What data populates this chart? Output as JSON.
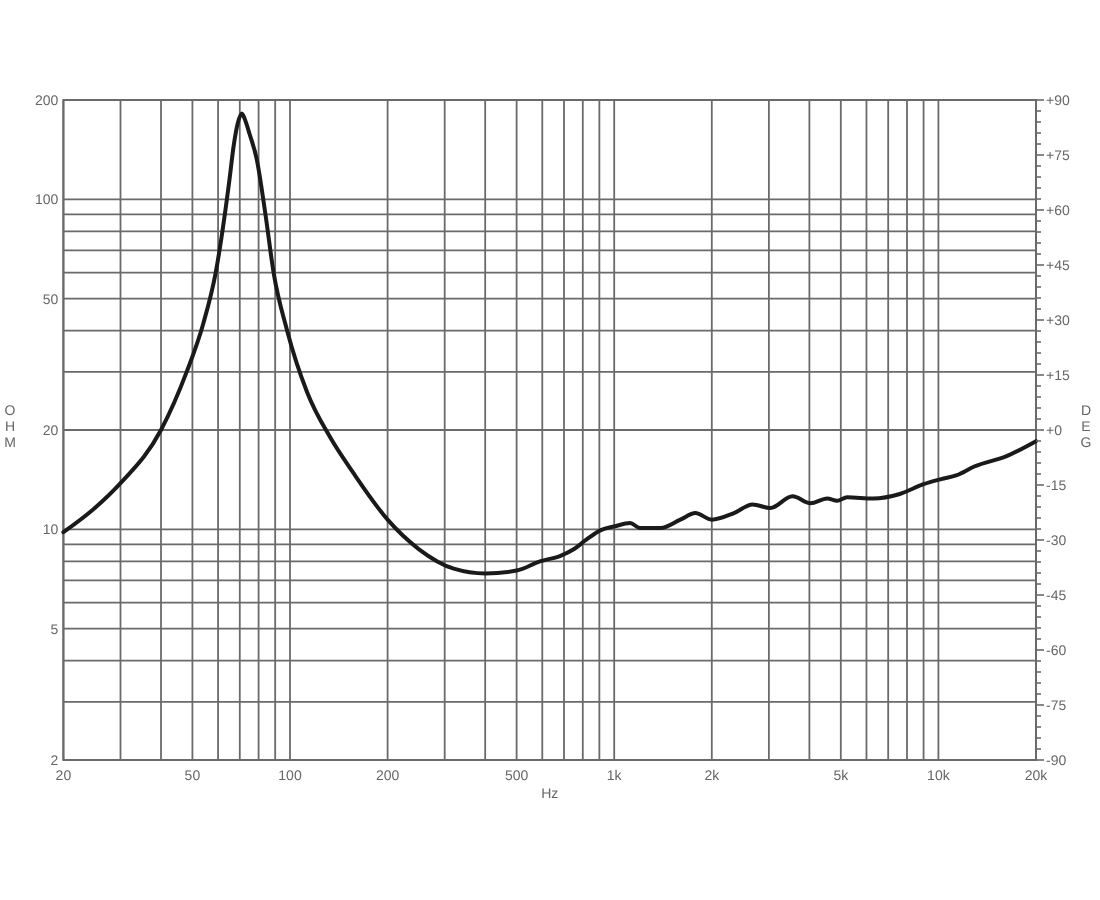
{
  "chart_data": {
    "type": "line",
    "xlabel": "Hz",
    "ylabel": "OHM",
    "y2label": "DEG",
    "log": "xy",
    "grid": true,
    "xlim": [
      20,
      20000
    ],
    "xticks": [
      20,
      {
        "value": 30,
        "label": null
      },
      {
        "value": 40,
        "label": null
      },
      50,
      {
        "value": 60,
        "label": null
      },
      {
        "value": 70,
        "label": null
      },
      {
        "value": 80,
        "label": null
      },
      {
        "value": 90,
        "label": null
      },
      100,
      200,
      {
        "value": 300,
        "label": null
      },
      {
        "value": 400,
        "label": null
      },
      500,
      {
        "value": 600,
        "label": null
      },
      {
        "value": 700,
        "label": null
      },
      {
        "value": 800,
        "label": null
      },
      {
        "value": 900,
        "label": null
      },
      {
        "value": 1000,
        "label": "1k"
      },
      {
        "value": 2000,
        "label": "2k"
      },
      {
        "value": 3000,
        "label": null
      },
      {
        "value": 4000,
        "label": null
      },
      {
        "value": 5000,
        "label": "5k"
      },
      {
        "value": 6000,
        "label": null
      },
      {
        "value": 7000,
        "label": null
      },
      {
        "value": 8000,
        "label": null
      },
      {
        "value": 9000,
        "label": null
      },
      {
        "value": 10000,
        "label": "10k"
      },
      {
        "value": 20000,
        "label": "20k"
      }
    ],
    "ylim": [
      2,
      200
    ],
    "yticks": [
      2,
      {
        "value": 3,
        "label": null
      },
      {
        "value": 4,
        "label": null
      },
      5,
      {
        "value": 6,
        "label": null
      },
      {
        "value": 7,
        "label": null
      },
      {
        "value": 8,
        "label": null
      },
      {
        "value": 9,
        "label": null
      },
      10,
      20,
      {
        "value": 30,
        "label": null
      },
      {
        "value": 40,
        "label": null
      },
      50,
      {
        "value": 60,
        "label": null
      },
      {
        "value": 70,
        "label": null
      },
      {
        "value": 80,
        "label": null
      },
      {
        "value": 90,
        "label": null
      },
      100,
      200
    ],
    "y2lim": [
      -90,
      90
    ],
    "y2ticks": [
      {
        "value": 90,
        "label": "+90"
      },
      {
        "value": 87,
        "label": null
      },
      {
        "value": 84,
        "label": null
      },
      {
        "value": 81,
        "label": null
      },
      {
        "value": 78,
        "label": null
      },
      {
        "value": 75,
        "label": "+75"
      },
      {
        "value": 72,
        "label": null
      },
      {
        "value": 69,
        "label": null
      },
      {
        "value": 66,
        "label": null
      },
      {
        "value": 63,
        "label": null
      },
      {
        "value": 60,
        "label": "+60"
      },
      {
        "value": 57,
        "label": null
      },
      {
        "value": 54,
        "label": null
      },
      {
        "value": 51,
        "label": null
      },
      {
        "value": 48,
        "label": null
      },
      {
        "value": 45,
        "label": "+45"
      },
      {
        "value": 42,
        "label": null
      },
      {
        "value": 39,
        "label": null
      },
      {
        "value": 36,
        "label": null
      },
      {
        "value": 33,
        "label": null
      },
      {
        "value": 30,
        "label": "+30"
      },
      {
        "value": 27,
        "label": null
      },
      {
        "value": 24,
        "label": null
      },
      {
        "value": 21,
        "label": null
      },
      {
        "value": 18,
        "label": null
      },
      {
        "value": 15,
        "label": "+15"
      },
      {
        "value": 12,
        "label": null
      },
      {
        "value": 9,
        "label": null
      },
      {
        "value": 6,
        "label": null
      },
      {
        "value": 3,
        "label": null
      },
      {
        "value": 0,
        "label": "+0"
      },
      {
        "value": -3,
        "label": null
      },
      {
        "value": -6,
        "label": null
      },
      {
        "value": -9,
        "label": null
      },
      {
        "value": -12,
        "label": null
      },
      -15,
      {
        "value": -18,
        "label": null
      },
      {
        "value": -21,
        "label": null
      },
      {
        "value": -24,
        "label": null
      },
      {
        "value": -27,
        "label": null
      },
      -30,
      {
        "value": -33,
        "label": null
      },
      {
        "value": -36,
        "label": null
      },
      {
        "value": -39,
        "label": null
      },
      {
        "value": -42,
        "label": null
      },
      -45,
      {
        "value": -48,
        "label": null
      },
      {
        "value": -51,
        "label": null
      },
      {
        "value": -54,
        "label": null
      },
      {
        "value": -57,
        "label": null
      },
      -60,
      {
        "value": -63,
        "label": null
      },
      {
        "value": -66,
        "label": null
      },
      {
        "value": -69,
        "label": null
      },
      {
        "value": -72,
        "label": null
      },
      -75,
      {
        "value": -78,
        "label": null
      },
      {
        "value": -81,
        "label": null
      },
      {
        "value": -84,
        "label": null
      },
      {
        "value": -87,
        "label": null
      },
      -90
    ],
    "series": [
      {
        "color": "#1a1a1a",
        "x": [
          20,
          25,
          30,
          40,
          48,
          54,
          59,
          65,
          67,
          69,
          71,
          73,
          75,
          79,
          84,
          89,
          98,
          113,
          133,
          157,
          200,
          250,
          320,
          400,
          500,
          590,
          680,
          750,
          820,
          910,
          1000,
          1120,
          1200,
          1390,
          1600,
          1780,
          2000,
          2340,
          2670,
          3030,
          3550,
          4030,
          4540,
          4870,
          5230,
          6300,
          7600,
          9000,
          10200,
          11400,
          12900,
          16300,
          20000
        ],
        "values": [
          9.8,
          11.6,
          13.8,
          20,
          30,
          42,
          60,
          114,
          145,
          170,
          182,
          172,
          158,
          132,
          90,
          60,
          40,
          26,
          19,
          14.8,
          10.7,
          8.7,
          7.6,
          7.35,
          7.5,
          8.0,
          8.3,
          8.7,
          9.3,
          9.95,
          10.2,
          10.45,
          10.1,
          10.1,
          10.7,
          11.2,
          10.7,
          11.2,
          11.9,
          11.6,
          12.6,
          12.0,
          12.4,
          12.2,
          12.5,
          12.4,
          12.8,
          13.7,
          14.2,
          14.6,
          15.5,
          16.7,
          18.5
        ]
      }
    ]
  }
}
